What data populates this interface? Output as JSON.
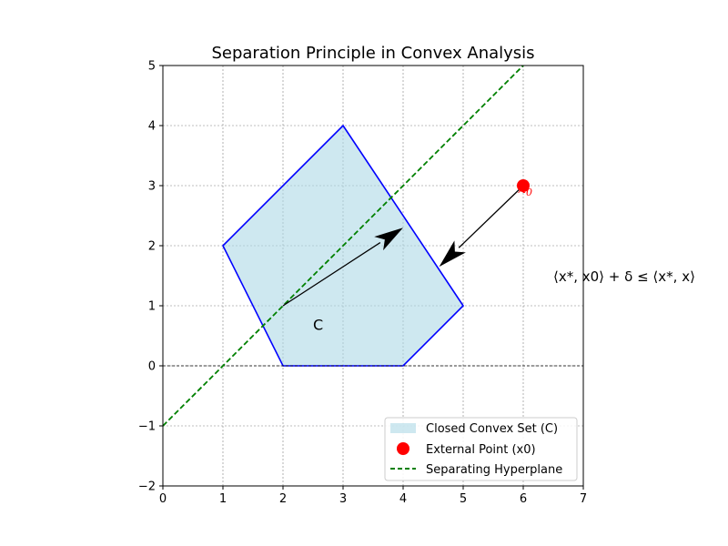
{
  "chart_data": {
    "type": "scatter",
    "title": "Separation Principle in Convex Analysis",
    "xlabel": "",
    "ylabel": "",
    "xlim": [
      0,
      7
    ],
    "ylim": [
      -2,
      5
    ],
    "xticks": [
      "0",
      "1",
      "2",
      "3",
      "4",
      "5",
      "6",
      "7"
    ],
    "yticks": [
      "−2",
      "−1",
      "0",
      "1",
      "2",
      "3",
      "4",
      "5"
    ],
    "grid": true,
    "legend_position": "lower-right",
    "convex_set": {
      "name": "Closed Convex Set (C)",
      "vertices": [
        [
          1,
          2
        ],
        [
          3,
          4
        ],
        [
          5,
          1
        ],
        [
          4,
          0
        ],
        [
          2,
          0
        ]
      ],
      "fill_color": "#add8e6",
      "edge_color": "#0000ff",
      "label": "C",
      "label_pos": [
        2.5,
        0.6
      ]
    },
    "external_point": {
      "name": "External Point (x0)",
      "x": 6,
      "y": 3,
      "color": "#ff0000",
      "label": "x0"
    },
    "hyperplane": {
      "name": "Separating Hyperplane",
      "slope": 1,
      "intercept": -1,
      "x_range": [
        0,
        6
      ],
      "color": "#008000"
    },
    "arrows": [
      {
        "from": [
          2,
          1
        ],
        "to": [
          4,
          2.3
        ]
      },
      {
        "from": [
          6,
          3
        ],
        "to": [
          4.6,
          1.65
        ]
      }
    ],
    "annotation": {
      "text": "⟨x*, x0⟩ + δ ≤ ⟨x*, x⟩",
      "x": 6.5,
      "y": 1.5
    },
    "horizontal_line_y": 0
  }
}
